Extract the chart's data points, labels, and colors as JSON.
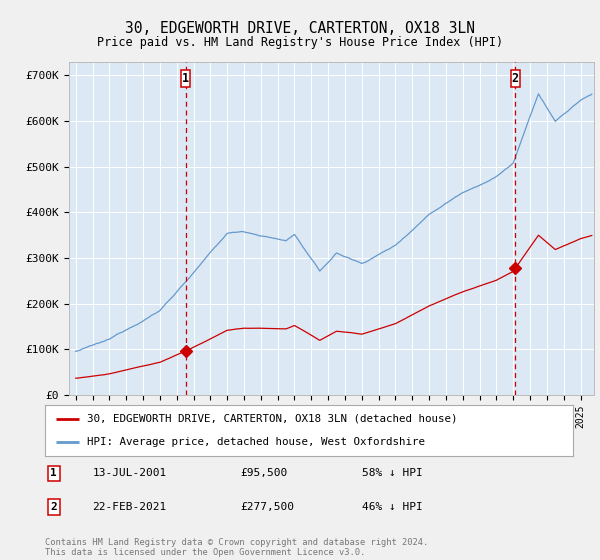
{
  "title": "30, EDGEWORTH DRIVE, CARTERTON, OX18 3LN",
  "subtitle": "Price paid vs. HM Land Registry's House Price Index (HPI)",
  "ylabel_ticks": [
    "£0",
    "£100K",
    "£200K",
    "£300K",
    "£400K",
    "£500K",
    "£600K",
    "£700K"
  ],
  "ytick_vals": [
    0,
    100000,
    200000,
    300000,
    400000,
    500000,
    600000,
    700000
  ],
  "ylim": [
    0,
    730000
  ],
  "xlim_start": 1994.6,
  "xlim_end": 2025.8,
  "sale1_x": 2001.54,
  "sale1_y": 95500,
  "sale2_x": 2021.13,
  "sale2_y": 277500,
  "line1_color": "#cc0000",
  "line2_color": "#6699cc",
  "plot_bg_color": "#dce9f5",
  "grid_color": "#ffffff",
  "legend1_label": "30, EDGEWORTH DRIVE, CARTERTON, OX18 3LN (detached house)",
  "legend2_label": "HPI: Average price, detached house, West Oxfordshire",
  "sale1_date": "13-JUL-2001",
  "sale1_price": "£95,500",
  "sale1_hpi": "58% ↓ HPI",
  "sale2_date": "22-FEB-2021",
  "sale2_price": "£277,500",
  "sale2_hpi": "46% ↓ HPI",
  "copyright_text": "Contains HM Land Registry data © Crown copyright and database right 2024.\nThis data is licensed under the Open Government Licence v3.0."
}
